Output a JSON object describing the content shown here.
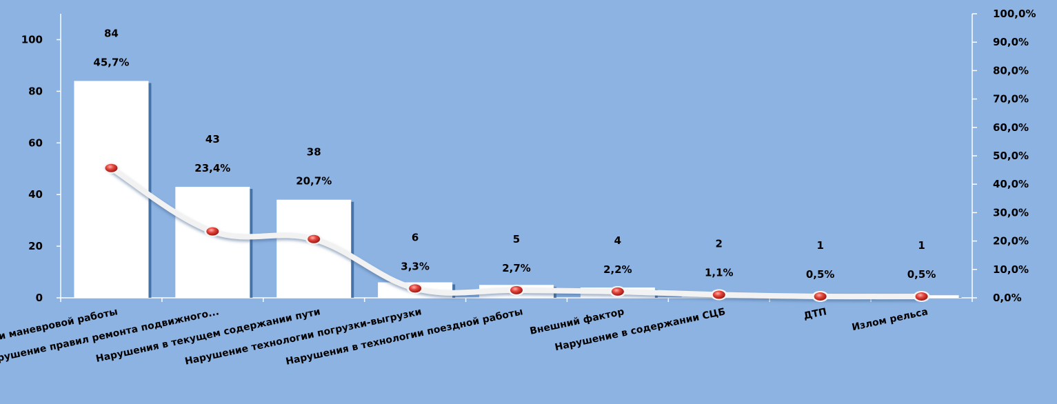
{
  "chart_data": {
    "type": "bar",
    "categories": [
      "Нарушение технологии маневровой работы",
      "Нарушение правил  ремонта подвижного...",
      "Нарушения в текущем содержании пути",
      "Нарушение технологии погрузки-выгрузки",
      "Нарушения в технологии поездной работы",
      "Внешний фактор",
      "Нарушение в содержании СЦБ",
      "ДТП",
      "Излом рельса"
    ],
    "series": [
      {
        "type": "bar",
        "values": [
          84,
          43,
          38,
          6,
          5,
          4,
          2,
          1,
          1
        ]
      },
      {
        "type": "line",
        "axis": "right",
        "values": [
          45.7,
          23.4,
          20.7,
          3.3,
          2.7,
          2.2,
          1.1,
          0.5,
          0.5
        ]
      }
    ],
    "bar_labels": [
      "84",
      "43",
      "38",
      "6",
      "5",
      "4",
      "2",
      "1",
      "1"
    ],
    "line_labels": [
      "45,7%",
      "23,4%",
      "20,7%",
      "3,3%",
      "2,7%",
      "2,2%",
      "1,1%",
      "0,5%",
      "0,5%"
    ],
    "y_left": {
      "ylim": [
        0,
        100
      ],
      "ticks": [
        "0",
        "20",
        "40",
        "60",
        "80",
        "100"
      ],
      "tick_values": [
        0,
        20,
        40,
        60,
        80,
        100
      ]
    },
    "y_right": {
      "ylim": [
        0,
        100
      ],
      "ticks": [
        "0,0%",
        "10,0%",
        "20,0%",
        "30,0%",
        "40,0%",
        "50,0%",
        "60,0%",
        "70,0%",
        "80,0%",
        "90,0%",
        "100,0%"
      ],
      "tick_values": [
        0,
        10,
        20,
        30,
        40,
        50,
        60,
        70,
        80,
        90,
        100
      ]
    },
    "legend": "none",
    "grid": false,
    "colors": {
      "background": "#8db3e2",
      "bar": "#ffffff",
      "bar_shadow": "#2f5d93",
      "line": "#f2f2f2",
      "marker": "#d9302a"
    }
  }
}
